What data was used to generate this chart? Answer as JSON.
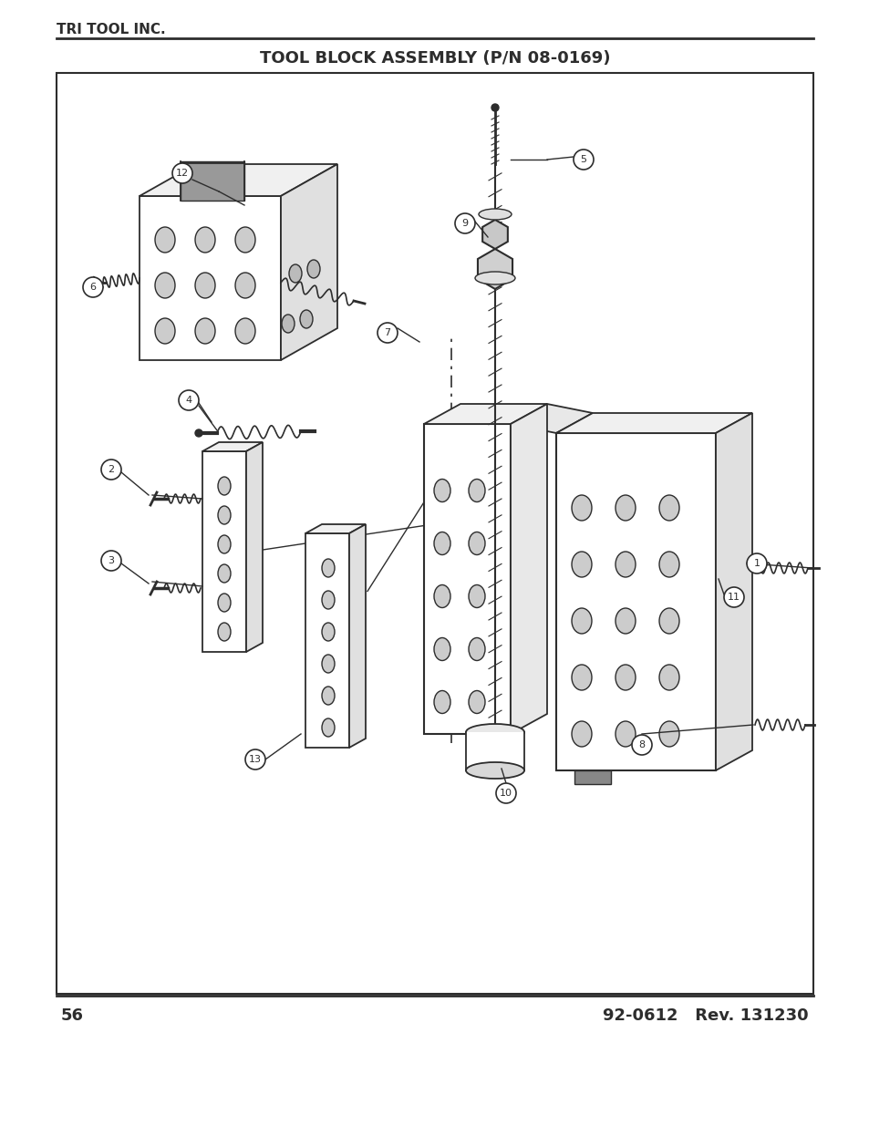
{
  "page_title": "TRI TOOL INC.",
  "diagram_title": "TOOL BLOCK ASSEMBLY (P/N 08-0169)",
  "page_number": "56",
  "doc_number": "92-0612",
  "rev": "Rev. 131230",
  "bg_color": "#ffffff",
  "text_color": "#2d2d2d",
  "border_color": "#2d2d2d",
  "fig_width": 9.54,
  "fig_height": 12.35,
  "dpi": 100
}
